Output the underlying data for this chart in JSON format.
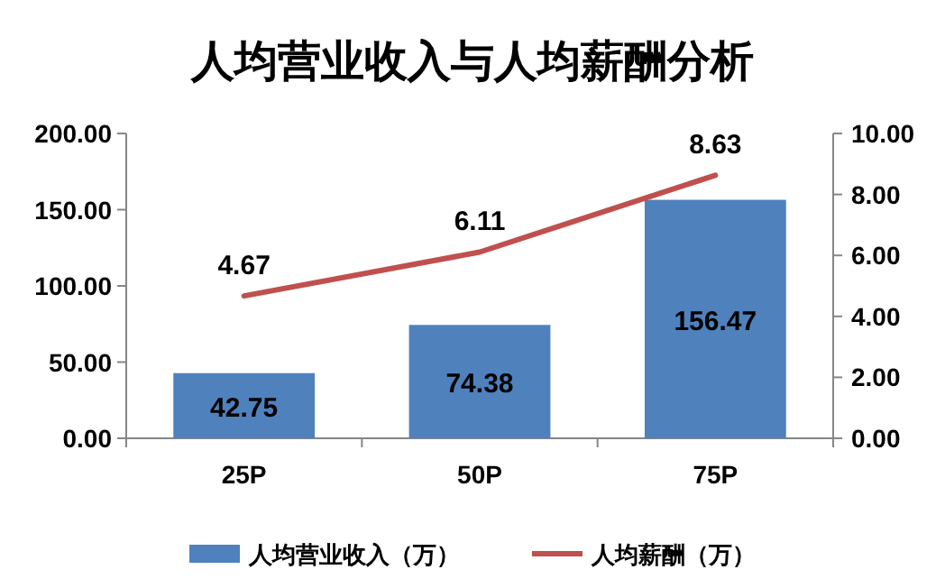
{
  "chart_data": {
    "type": "bar",
    "title": "人均营业收入与人均薪酬分析",
    "categories": [
      "25P",
      "50P",
      "75P"
    ],
    "series": [
      {
        "name": "人均营业收入（万）",
        "color": "#4f81bd",
        "values": [
          42.75,
          74.38,
          156.47
        ]
      },
      {
        "name": "人均薪酬（万）",
        "type": "line",
        "axis": "y2",
        "color": "#c0504d",
        "values": [
          4.67,
          6.11,
          8.63
        ]
      }
    ],
    "ylim": [
      0,
      200
    ],
    "yticks": [
      {
        "value": 0,
        "label": "0.00"
      },
      {
        "value": 50,
        "label": "50.00"
      },
      {
        "value": 100,
        "label": "100.00"
      },
      {
        "value": 150,
        "label": "150.00"
      },
      {
        "value": 200,
        "label": "200.00"
      }
    ],
    "y2lim": [
      0,
      10
    ],
    "y2ticks": [
      {
        "value": 0,
        "label": "0.00"
      },
      {
        "value": 2,
        "label": "2.00"
      },
      {
        "value": 4,
        "label": "4.00"
      },
      {
        "value": 6,
        "label": "6.00"
      },
      {
        "value": 8,
        "label": "8.00"
      },
      {
        "value": 10,
        "label": "10.00"
      }
    ],
    "data_labels": true,
    "legend": "bottom",
    "grid": false,
    "marker": "none",
    "line_style": "solid"
  }
}
